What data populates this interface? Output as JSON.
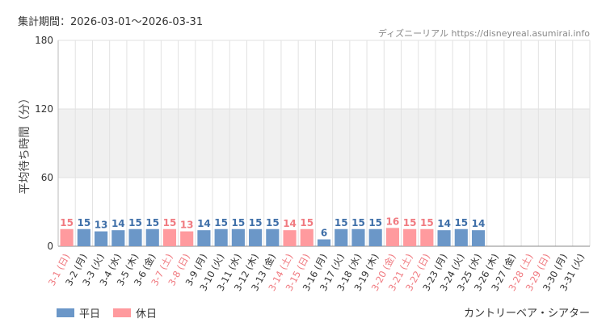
{
  "header": {
    "period_label": "集計期間：2026-03-01〜2026-03-31",
    "credit": "ディズニーリアル https://disneyreal.asumirai.info"
  },
  "footer": {
    "facility": "カントリーベア・シアター"
  },
  "legend": {
    "weekday_label": "平日",
    "holiday_label": "休日"
  },
  "colors": {
    "weekday": "#6b97c8",
    "holiday": "#ff9a9e",
    "weekday_text": "#3f6fa8",
    "holiday_text": "#f07a80",
    "band": "#f0f0f0",
    "grid": "#e2e2e2"
  },
  "chart_data": {
    "type": "bar",
    "title": "",
    "xlabel": "",
    "ylabel": "平均待ち時間（分）",
    "ylim": [
      0,
      180
    ],
    "yticks": [
      0,
      60,
      120,
      180
    ],
    "shaded_band": [
      60,
      120
    ],
    "grid": true,
    "legend_position": "bottom-left",
    "categories": [
      "3-1 (日)",
      "3-2 (月)",
      "3-3 (火)",
      "3-4 (水)",
      "3-5 (木)",
      "3-6 (金)",
      "3-7 (土)",
      "3-8 (日)",
      "3-9 (月)",
      "3-10 (火)",
      "3-11 (水)",
      "3-12 (木)",
      "3-13 (金)",
      "3-14 (土)",
      "3-15 (日)",
      "3-16 (月)",
      "3-17 (火)",
      "3-18 (水)",
      "3-19 (木)",
      "3-20 (金)",
      "3-21 (土)",
      "3-22 (日)",
      "3-23 (月)",
      "3-24 (火)",
      "3-25 (水)",
      "3-26 (木)",
      "3-27 (金)",
      "3-28 (土)",
      "3-29 (日)",
      "3-30 (月)",
      "3-31 (火)"
    ],
    "values": [
      15,
      15,
      13,
      14,
      15,
      15,
      15,
      13,
      14,
      15,
      15,
      15,
      15,
      14,
      15,
      6,
      15,
      15,
      15,
      16,
      15,
      15,
      14,
      15,
      14,
      null,
      null,
      null,
      null,
      null,
      null
    ],
    "day_type": [
      "holiday",
      "weekday",
      "weekday",
      "weekday",
      "weekday",
      "weekday",
      "holiday",
      "holiday",
      "weekday",
      "weekday",
      "weekday",
      "weekday",
      "weekday",
      "holiday",
      "holiday",
      "weekday",
      "weekday",
      "weekday",
      "weekday",
      "holiday",
      "holiday",
      "holiday",
      "weekday",
      "weekday",
      "weekday",
      "weekday",
      "weekday",
      "holiday",
      "holiday",
      "weekday",
      "weekday"
    ]
  }
}
